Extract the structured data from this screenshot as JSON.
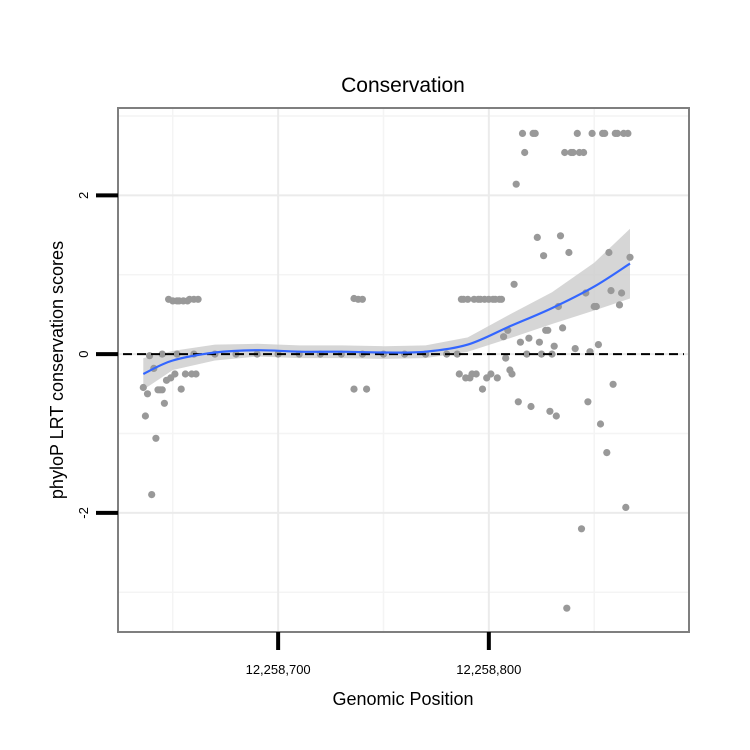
{
  "chart_data": {
    "type": "scatter",
    "title": "Conservation",
    "xlabel": "Genomic Position",
    "ylabel": "phyloP LRT conservation scores",
    "xlim": [
      12258624,
      12258895
    ],
    "ylim": [
      -3.5,
      3.1
    ],
    "x_ticks": [
      {
        "value": 12258700,
        "label": "12,258,700"
      },
      {
        "value": 12258800,
        "label": "12,258,800"
      }
    ],
    "y_ticks": [
      {
        "value": -2,
        "label": "-2"
      },
      {
        "value": 0,
        "label": "0"
      },
      {
        "value": 2,
        "label": "2"
      }
    ],
    "minor_grid_x": [
      12258650,
      12258750,
      12258850
    ],
    "minor_grid_y": [
      -3,
      -1,
      1,
      3
    ],
    "reference_line": {
      "y": 0,
      "style": "dashed"
    },
    "point_color": "#999999",
    "smooth_color": "#3366ff",
    "ribbon_color": "#cccccc",
    "panel_border_color": "#7f7f7f",
    "grid": true,
    "legend": "none",
    "points": [
      [
        12258636,
        -0.42
      ],
      [
        12258637,
        -0.78
      ],
      [
        12258638,
        -0.5
      ],
      [
        12258639,
        -0.02
      ],
      [
        12258640,
        -1.77
      ],
      [
        12258641,
        -0.18
      ],
      [
        12258642,
        -1.06
      ],
      [
        12258643,
        -0.45
      ],
      [
        12258644,
        -0.45
      ],
      [
        12258645,
        -0.45
      ],
      [
        12258646,
        -0.62
      ],
      [
        12258647,
        -0.33
      ],
      [
        12258648,
        0.69
      ],
      [
        12258649,
        -0.3
      ],
      [
        12258650,
        0.67
      ],
      [
        12258651,
        -0.25
      ],
      [
        12258652,
        0.67
      ],
      [
        12258653,
        0.67
      ],
      [
        12258654,
        -0.44
      ],
      [
        12258655,
        0.67
      ],
      [
        12258656,
        -0.25
      ],
      [
        12258657,
        0.67
      ],
      [
        12258658,
        0.69
      ],
      [
        12258659,
        -0.25
      ],
      [
        12258660,
        0.69
      ],
      [
        12258661,
        -0.25
      ],
      [
        12258662,
        0.69
      ],
      [
        12258645,
        0.0
      ],
      [
        12258652,
        0.0
      ],
      [
        12258660,
        0.0
      ],
      [
        12258670,
        0.0
      ],
      [
        12258680,
        0.0
      ],
      [
        12258690,
        0.0
      ],
      [
        12258700,
        0.0
      ],
      [
        12258710,
        0.0
      ],
      [
        12258720,
        0.0
      ],
      [
        12258730,
        0.0
      ],
      [
        12258740,
        0.0
      ],
      [
        12258750,
        0.0
      ],
      [
        12258760,
        0.0
      ],
      [
        12258770,
        0.0
      ],
      [
        12258780,
        0.0
      ],
      [
        12258785,
        0.0
      ],
      [
        12258736,
        0.7
      ],
      [
        12258738,
        0.69
      ],
      [
        12258740,
        0.69
      ],
      [
        12258736,
        -0.44
      ],
      [
        12258742,
        -0.44
      ],
      [
        12258786,
        -0.25
      ],
      [
        12258787,
        0.69
      ],
      [
        12258788,
        0.69
      ],
      [
        12258789,
        -0.3
      ],
      [
        12258790,
        0.69
      ],
      [
        12258791,
        -0.3
      ],
      [
        12258792,
        -0.25
      ],
      [
        12258793,
        0.69
      ],
      [
        12258794,
        -0.25
      ],
      [
        12258795,
        0.69
      ],
      [
        12258796,
        0.69
      ],
      [
        12258797,
        -0.44
      ],
      [
        12258798,
        0.69
      ],
      [
        12258799,
        -0.3
      ],
      [
        12258800,
        0.69
      ],
      [
        12258801,
        -0.25
      ],
      [
        12258802,
        0.69
      ],
      [
        12258803,
        0.69
      ],
      [
        12258804,
        -0.3
      ],
      [
        12258805,
        0.69
      ],
      [
        12258806,
        0.69
      ],
      [
        12258807,
        0.22
      ],
      [
        12258808,
        -0.05
      ],
      [
        12258809,
        0.3
      ],
      [
        12258810,
        -0.2
      ],
      [
        12258811,
        -0.25
      ],
      [
        12258812,
        0.88
      ],
      [
        12258813,
        2.14
      ],
      [
        12258814,
        -0.6
      ],
      [
        12258815,
        0.15
      ],
      [
        12258816,
        2.78
      ],
      [
        12258817,
        2.54
      ],
      [
        12258818,
        0.0
      ],
      [
        12258819,
        0.2
      ],
      [
        12258820,
        -0.66
      ],
      [
        12258821,
        2.78
      ],
      [
        12258822,
        2.78
      ],
      [
        12258823,
        1.47
      ],
      [
        12258824,
        0.15
      ],
      [
        12258825,
        0.0
      ],
      [
        12258826,
        1.24
      ],
      [
        12258827,
        0.3
      ],
      [
        12258828,
        0.3
      ],
      [
        12258829,
        -0.72
      ],
      [
        12258830,
        0.0
      ],
      [
        12258831,
        0.1
      ],
      [
        12258832,
        -0.78
      ],
      [
        12258833,
        0.6
      ],
      [
        12258834,
        1.49
      ],
      [
        12258835,
        0.33
      ],
      [
        12258836,
        2.54
      ],
      [
        12258837,
        -3.2
      ],
      [
        12258838,
        1.28
      ],
      [
        12258839,
        2.54
      ],
      [
        12258840,
        2.54
      ],
      [
        12258841,
        0.07
      ],
      [
        12258842,
        2.78
      ],
      [
        12258843,
        2.54
      ],
      [
        12258844,
        -2.2
      ],
      [
        12258845,
        2.54
      ],
      [
        12258846,
        0.77
      ],
      [
        12258847,
        -0.6
      ],
      [
        12258848,
        0.03
      ],
      [
        12258849,
        2.78
      ],
      [
        12258850,
        0.6
      ],
      [
        12258851,
        0.6
      ],
      [
        12258852,
        0.12
      ],
      [
        12258853,
        -0.88
      ],
      [
        12258854,
        2.78
      ],
      [
        12258855,
        2.78
      ],
      [
        12258856,
        -1.24
      ],
      [
        12258857,
        1.28
      ],
      [
        12258858,
        0.8
      ],
      [
        12258859,
        -0.38
      ],
      [
        12258860,
        2.78
      ],
      [
        12258861,
        2.78
      ],
      [
        12258862,
        0.62
      ],
      [
        12258863,
        0.77
      ],
      [
        12258864,
        2.78
      ],
      [
        12258865,
        -1.93
      ],
      [
        12258866,
        2.78
      ],
      [
        12258867,
        1.22
      ]
    ],
    "smooth": {
      "x": [
        12258636,
        12258650,
        12258670,
        12258690,
        12258710,
        12258730,
        12258750,
        12258770,
        12258790,
        12258810,
        12258830,
        12258850,
        12258867
      ],
      "y": [
        -0.25,
        -0.08,
        0.02,
        0.05,
        0.03,
        0.03,
        0.02,
        0.03,
        0.12,
        0.35,
        0.58,
        0.85,
        1.14
      ],
      "lower": [
        -0.45,
        -0.2,
        -0.08,
        -0.03,
        -0.05,
        -0.05,
        -0.06,
        -0.05,
        0.03,
        0.2,
        0.38,
        0.55,
        0.7
      ],
      "upper": [
        -0.05,
        0.04,
        0.12,
        0.13,
        0.11,
        0.11,
        0.1,
        0.11,
        0.21,
        0.5,
        0.78,
        1.15,
        1.58
      ]
    }
  }
}
